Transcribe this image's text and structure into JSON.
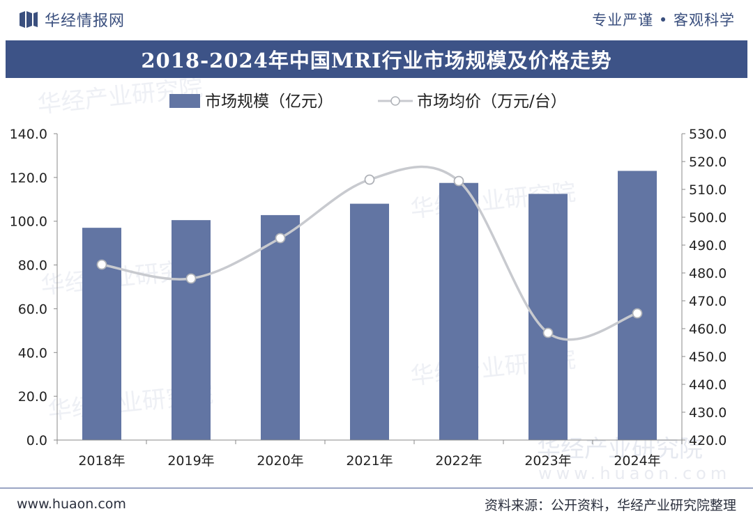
{
  "brand": {
    "name": "华经情报网",
    "slogan": "专业严谨 • 客观科学"
  },
  "footer": {
    "website": "www.huaon.com",
    "source": "资料来源：公开资料，华经产业研究院整理"
  },
  "watermark": {
    "text": "华经产业研究院",
    "url": "www.huaon.com"
  },
  "colors": {
    "bar": "#6275a3",
    "line": "#c8cacf",
    "title_bg": "#3d5387",
    "brand": "#3a4f7e"
  },
  "chart_data": {
    "type": "bar",
    "title": "2018-2024年中国MRI行业市场规模及价格走势",
    "categories": [
      "2018年",
      "2019年",
      "2020年",
      "2021年",
      "2022年",
      "2023年",
      "2024年"
    ],
    "series": [
      {
        "name": "市场规模（亿元）",
        "type": "bar",
        "axis": "left",
        "values": [
          97,
          100.5,
          102.8,
          108,
          117.5,
          112.5,
          123
        ]
      },
      {
        "name": "市场均价（万元/台）",
        "type": "line",
        "axis": "right",
        "smooth": true,
        "values": [
          483,
          478,
          492.5,
          513.5,
          513,
          458.5,
          465.5
        ]
      }
    ],
    "y_left": {
      "range": [
        0,
        140
      ],
      "ticks": [
        "0.0",
        "20.0",
        "40.0",
        "60.0",
        "80.0",
        "100.0",
        "120.0",
        "140.0"
      ]
    },
    "y_right": {
      "range": [
        420,
        530
      ],
      "ticks": [
        "420.0",
        "430.0",
        "440.0",
        "450.0",
        "460.0",
        "470.0",
        "480.0",
        "490.0",
        "500.0",
        "510.0",
        "520.0",
        "530.0"
      ]
    },
    "legend_position": "top-center",
    "grid": false
  }
}
